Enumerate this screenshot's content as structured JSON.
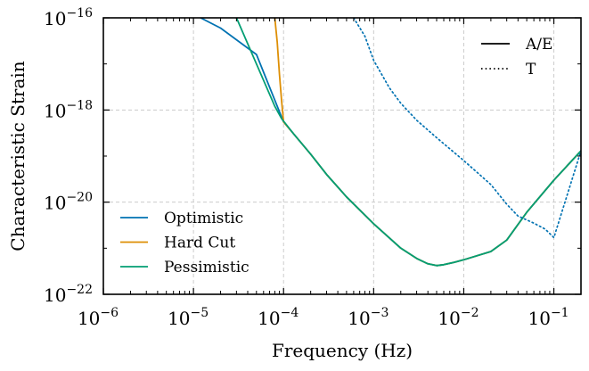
{
  "chart_data": {
    "type": "line",
    "xlabel": "Frequency (Hz)",
    "ylabel": "Characteristic Strain",
    "xscale": "log",
    "yscale": "log",
    "xlim": [
      1e-06,
      0.2
    ],
    "ylim": [
      1e-22,
      1e-16
    ],
    "grid": true,
    "x_ticks": [
      {
        "value": 1e-06,
        "base": "10",
        "exp": "−6"
      },
      {
        "value": 1e-05,
        "base": "10",
        "exp": "−5"
      },
      {
        "value": 0.0001,
        "base": "10",
        "exp": "−4"
      },
      {
        "value": 0.001,
        "base": "10",
        "exp": "−3"
      },
      {
        "value": 0.01,
        "base": "10",
        "exp": "−2"
      },
      {
        "value": 0.1,
        "base": "10",
        "exp": "−1"
      }
    ],
    "y_ticks": [
      {
        "value": 1e-22,
        "base": "10",
        "exp": "−22"
      },
      {
        "value": 1e-20,
        "base": "10",
        "exp": "−20"
      },
      {
        "value": 1e-18,
        "base": "10",
        "exp": "−18"
      },
      {
        "value": 1e-16,
        "base": "10",
        "exp": "−16"
      }
    ],
    "legend_lower_left": {
      "placement": "lower-left",
      "entries": [
        {
          "label": "Optimistic",
          "color": "#0072b2"
        },
        {
          "label": "Hard Cut",
          "color": "#de8f05"
        },
        {
          "label": "Pessimistic",
          "color": "#029e73"
        }
      ]
    },
    "legend_upper_right": {
      "placement": "upper-right",
      "entries": [
        {
          "label": "A/E",
          "linestyle": "solid"
        },
        {
          "label": "T",
          "linestyle": "dotted"
        }
      ]
    },
    "series": [
      {
        "name": "Optimistic",
        "channel": "A/E",
        "color": "#0072b2",
        "linestyle": "solid",
        "x": [
          1.2e-05,
          2e-05,
          5e-05,
          0.0001,
          0.00013,
          0.0002,
          0.0003,
          0.0005,
          0.001,
          0.002,
          0.003,
          0.004,
          0.005,
          0.006,
          0.008,
          0.01,
          0.02,
          0.03,
          0.05,
          0.1,
          0.2
        ],
        "y": [
          1e-16,
          6e-17,
          1.6e-17,
          5.5e-19,
          3e-19,
          1.1e-19,
          4e-20,
          1.3e-20,
          3.4e-21,
          1e-21,
          6e-22,
          4.6e-22,
          4.2e-22,
          4.4e-22,
          5e-22,
          5.6e-22,
          8.5e-22,
          1.5e-21,
          6e-21,
          3e-20,
          1.3e-19
        ]
      },
      {
        "name": "Hard Cut",
        "channel": "A/E",
        "color": "#de8f05",
        "linestyle": "solid",
        "x": [
          8e-05,
          8.5e-05,
          9e-05,
          9.5e-05,
          0.0001,
          0.00013,
          0.0002,
          0.0003,
          0.0005,
          0.001,
          0.002,
          0.003,
          0.004,
          0.005,
          0.006,
          0.008,
          0.01,
          0.02,
          0.03,
          0.05,
          0.1,
          0.2
        ],
        "y": [
          1e-16,
          3e-17,
          6e-18,
          1.6e-18,
          5.5e-19,
          3e-19,
          1.1e-19,
          4e-20,
          1.3e-20,
          3.4e-21,
          1e-21,
          6e-22,
          4.6e-22,
          4.2e-22,
          4.4e-22,
          5e-22,
          5.6e-22,
          8.5e-22,
          1.5e-21,
          6e-21,
          3e-20,
          1.3e-19
        ]
      },
      {
        "name": "Pessimistic",
        "channel": "A/E",
        "color": "#029e73",
        "linestyle": "solid",
        "x": [
          3e-05,
          5e-05,
          8e-05,
          9.5e-05,
          0.00013,
          0.0002,
          0.0003,
          0.0005,
          0.001,
          0.002,
          0.003,
          0.004,
          0.005,
          0.006,
          0.008,
          0.01,
          0.02,
          0.03,
          0.05,
          0.1,
          0.2
        ],
        "y": [
          1e-16,
          1e-17,
          1.2e-18,
          6.5e-19,
          3e-19,
          1.1e-19,
          4e-20,
          1.3e-20,
          3.4e-21,
          1e-21,
          6e-22,
          4.6e-22,
          4.2e-22,
          4.4e-22,
          5e-22,
          5.6e-22,
          8.5e-22,
          1.5e-21,
          6e-21,
          3e-20,
          1.3e-19
        ]
      },
      {
        "name": "Optimistic",
        "channel": "T",
        "color": "#0072b2",
        "linestyle": "dotted",
        "x": [
          0.0006,
          0.0008,
          0.001,
          0.0015,
          0.002,
          0.003,
          0.005,
          0.01,
          0.02,
          0.03,
          0.04,
          0.06,
          0.08,
          0.1,
          0.2
        ],
        "y": [
          1e-16,
          4e-17,
          1.2e-17,
          3e-18,
          1.4e-18,
          6e-19,
          2.5e-19,
          8e-20,
          2.4e-20,
          9e-21,
          5e-21,
          3.5e-21,
          2.6e-21,
          1.7e-21,
          1.3e-19
        ]
      }
    ]
  }
}
